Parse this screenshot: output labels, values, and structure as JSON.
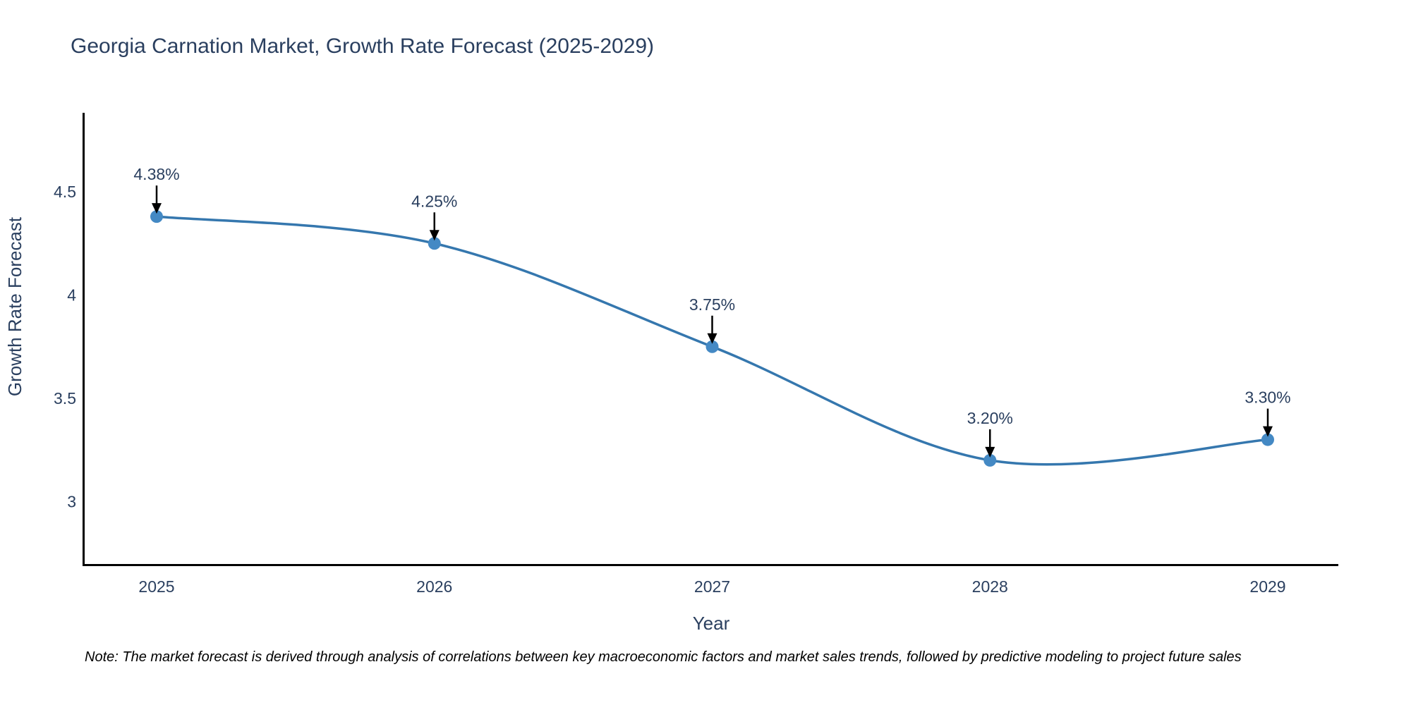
{
  "page": {
    "background": "#ffffff"
  },
  "chart": {
    "title": "Georgia Carnation Market, Growth Rate Forecast (2025-2029)",
    "xlabel": "Year",
    "ylabel": "Growth Rate Forecast",
    "note": "Note: The market forecast is derived through analysis of correlations between key macroeconomic factors and market sales trends, followed by predictive modeling to project future sales",
    "colors": {
      "line": "#3577ae",
      "marker": "#4489c4",
      "text": "#2a3f5f",
      "axis": "#000000",
      "arrow": "#000000",
      "note": "#000000"
    }
  },
  "chart_data": {
    "type": "line",
    "line_shape": "spline",
    "title": "Georgia Carnation Market, Growth Rate Forecast (2025-2029)",
    "xlabel": "Year",
    "ylabel": "Growth Rate Forecast",
    "x": [
      2025,
      2026,
      2027,
      2028,
      2029
    ],
    "values": [
      4.38,
      4.25,
      3.75,
      3.2,
      3.3
    ],
    "point_labels": [
      "4.38%",
      "4.25%",
      "3.75%",
      "3.20%",
      "3.30%"
    ],
    "x_tick_labels": [
      "2025",
      "2026",
      "2027",
      "2028",
      "2029"
    ],
    "y_tick_values": [
      4.5,
      4.0,
      3.5,
      3.0
    ],
    "y_tick_labels": [
      "4.5",
      "4",
      "3.5",
      "3"
    ],
    "xlim": [
      2024.74,
      2029.25
    ],
    "ylim": [
      2.7,
      4.88
    ],
    "grid": false,
    "legend": null,
    "annotations_have_arrows": true
  }
}
